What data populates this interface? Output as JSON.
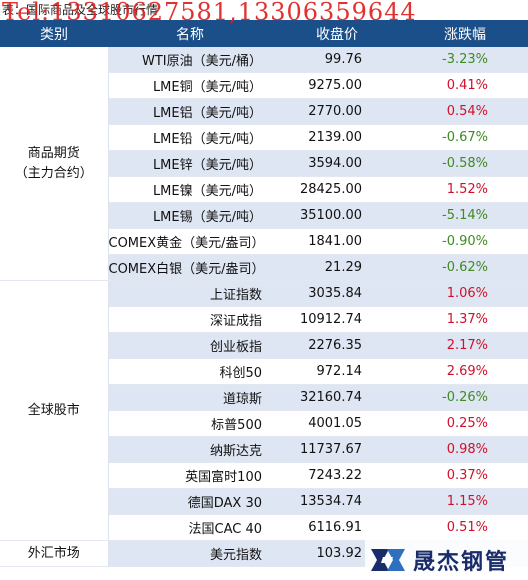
{
  "caption": "表：国际商品及全球股市行情",
  "watermark": "Tel:13310627581,13306359644",
  "headers": {
    "category": "类别",
    "name": "名称",
    "close": "收盘价",
    "change": "涨跌幅"
  },
  "groups": [
    {
      "label": "商品期货\n（主力合约）",
      "rows": [
        {
          "name": "WTI原油（美元/桶）",
          "close": "99.76",
          "change": "-3.23%"
        },
        {
          "name": "LME铜（美元/吨）",
          "close": "9275.00",
          "change": "0.41%"
        },
        {
          "name": "LME铝（美元/吨）",
          "close": "2770.00",
          "change": "0.54%"
        },
        {
          "name": "LME铅（美元/吨）",
          "close": "2139.00",
          "change": "-0.67%"
        },
        {
          "name": "LME锌（美元/吨）",
          "close": "3594.00",
          "change": "-0.58%"
        },
        {
          "name": "LME镍（美元/吨）",
          "close": "28425.00",
          "change": "1.52%"
        },
        {
          "name": "LME锡（美元/吨）",
          "close": "35100.00",
          "change": "-5.14%"
        },
        {
          "name": "COMEX黄金（美元/盎司）",
          "close": "1841.00",
          "change": "-0.90%"
        },
        {
          "name": "COMEX白银（美元/盎司）",
          "close": "21.29",
          "change": "-0.62%"
        }
      ]
    },
    {
      "label": "全球股市",
      "rows": [
        {
          "name": "上证指数",
          "close": "3035.84",
          "change": "1.06%"
        },
        {
          "name": "深证成指",
          "close": "10912.74",
          "change": "1.37%"
        },
        {
          "name": "创业板指",
          "close": "2276.35",
          "change": "2.17%"
        },
        {
          "name": "科创50",
          "close": "972.14",
          "change": "2.69%"
        },
        {
          "name": "道琼斯",
          "close": "32160.74",
          "change": "-0.26%"
        },
        {
          "name": "标普500",
          "close": "4001.05",
          "change": "0.25%"
        },
        {
          "name": "纳斯达克",
          "close": "11737.67",
          "change": "0.98%"
        },
        {
          "name": "英国富时100",
          "close": "7243.22",
          "change": "0.37%"
        },
        {
          "name": "德国DAX 30",
          "close": "13534.74",
          "change": "1.15%"
        },
        {
          "name": "法国CAC 40",
          "close": "6116.91",
          "change": "0.51%"
        }
      ]
    },
    {
      "label": "外汇市场",
      "rows": [
        {
          "name": "美元指数",
          "close": "103.92",
          "change": ""
        }
      ]
    }
  ],
  "logo": {
    "text": "晟杰钢管"
  },
  "colors": {
    "header_bg": "#1b4f8a",
    "row_alt": "#dfe6f3",
    "positive": "#d0102a",
    "negative": "#3f8a22"
  }
}
